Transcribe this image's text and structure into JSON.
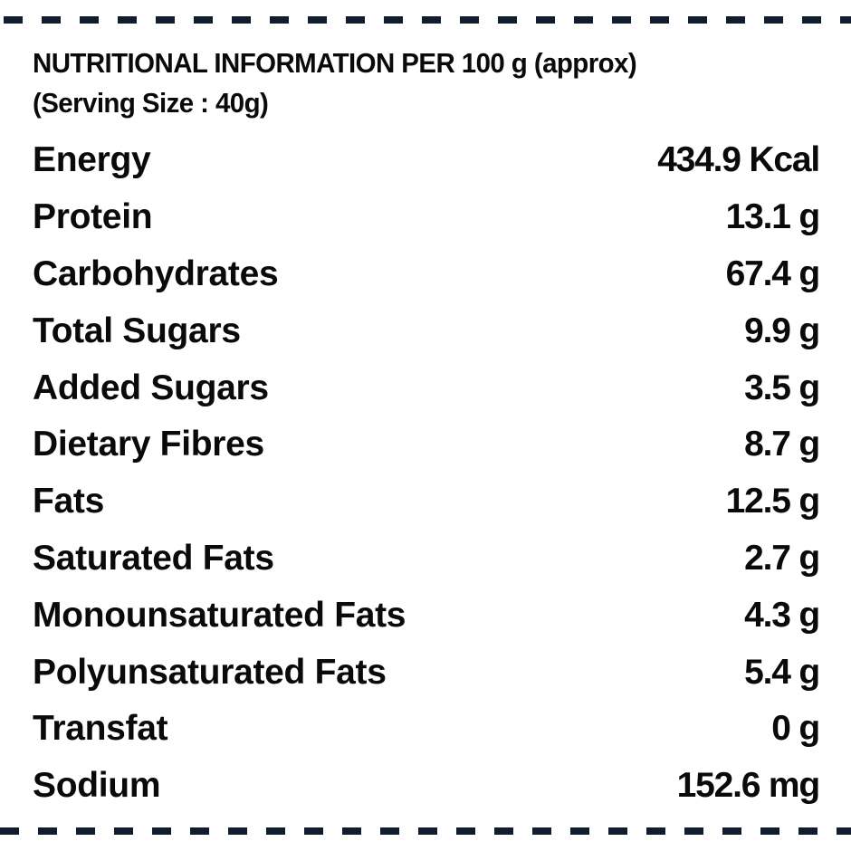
{
  "colors": {
    "dash": "#0f1d2e",
    "text": "#0a0a0a",
    "background": "#ffffff"
  },
  "header": {
    "title": "NUTRITIONAL INFORMATION PER 100 g (approx)",
    "serving_size": "(Serving Size : 40g)"
  },
  "nutrients": [
    {
      "label": "Energy",
      "value": "434.9 Kcal"
    },
    {
      "label": "Protein",
      "value": "13.1 g"
    },
    {
      "label": "Carbohydrates",
      "value": "67.4 g"
    },
    {
      "label": "Total Sugars",
      "value": "9.9 g"
    },
    {
      "label": "Added Sugars",
      "value": "3.5 g"
    },
    {
      "label": "Dietary Fibres",
      "value": "8.7 g"
    },
    {
      "label": "Fats",
      "value": "12.5 g"
    },
    {
      "label": "Saturated Fats",
      "value": "2.7 g"
    },
    {
      "label": "Monounsaturated Fats",
      "value": "4.3 g"
    },
    {
      "label": "Polyunsaturated Fats",
      "value": "5.4 g"
    },
    {
      "label": "Transfat",
      "value": "0 g"
    },
    {
      "label": "Sodium",
      "value": "152.6 mg"
    }
  ]
}
